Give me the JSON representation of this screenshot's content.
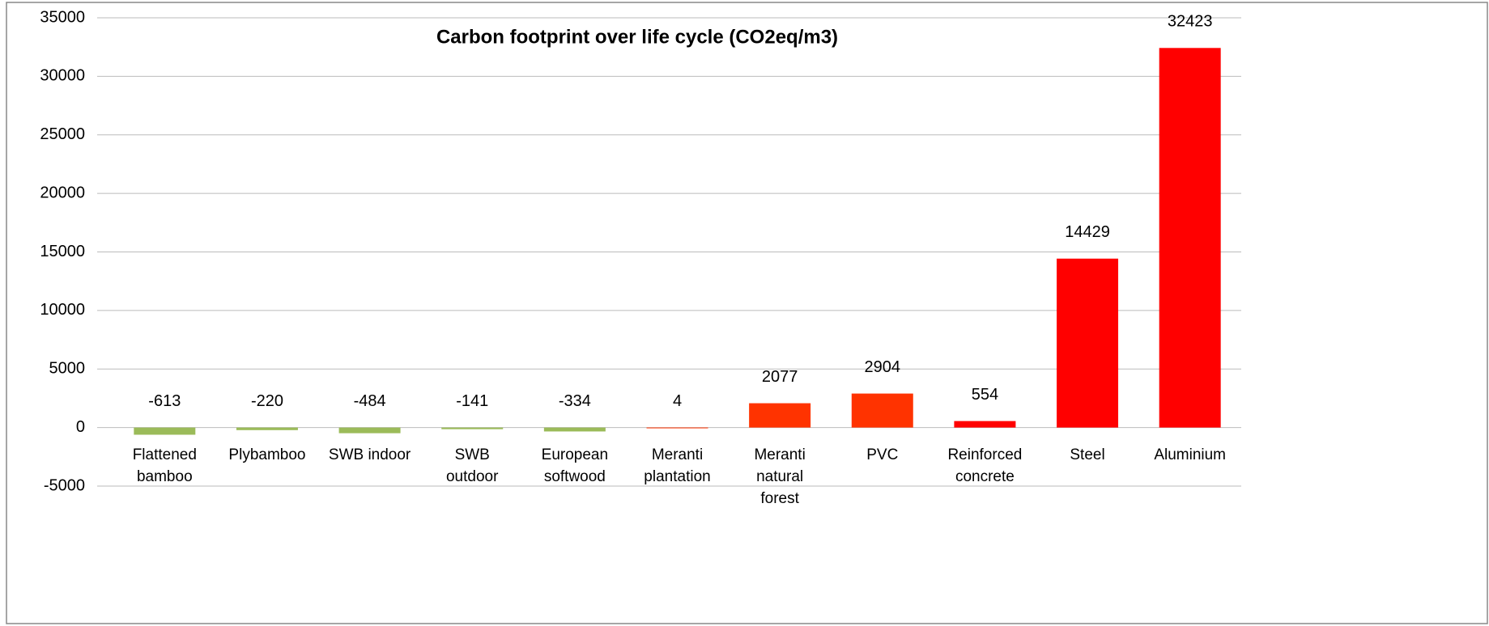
{
  "chart_data": {
    "type": "bar",
    "title": "Carbon footprint over life cycle (CO2eq/m3)",
    "categories": [
      "Flattened bamboo",
      "Plybamboo",
      "SWB indoor",
      "SWB outdoor",
      "European softwood",
      "Meranti plantation",
      "Meranti natural forest",
      "PVC",
      "Reinforced concrete",
      "Steel",
      "Aluminium"
    ],
    "values": [
      -613,
      -220,
      -484,
      -141,
      -334,
      4,
      2077,
      2904,
      554,
      14429,
      32423
    ],
    "colors": [
      "#9bbb59",
      "#9bbb59",
      "#9bbb59",
      "#9bbb59",
      "#9bbb59",
      "#ff3300",
      "#ff3300",
      "#ff3300",
      "#ff0000",
      "#ff0000",
      "#ff0000"
    ],
    "ylim": [
      -5000,
      35000
    ],
    "yticks": [
      -5000,
      0,
      5000,
      10000,
      15000,
      20000,
      25000,
      30000,
      35000
    ],
    "grid": true
  }
}
